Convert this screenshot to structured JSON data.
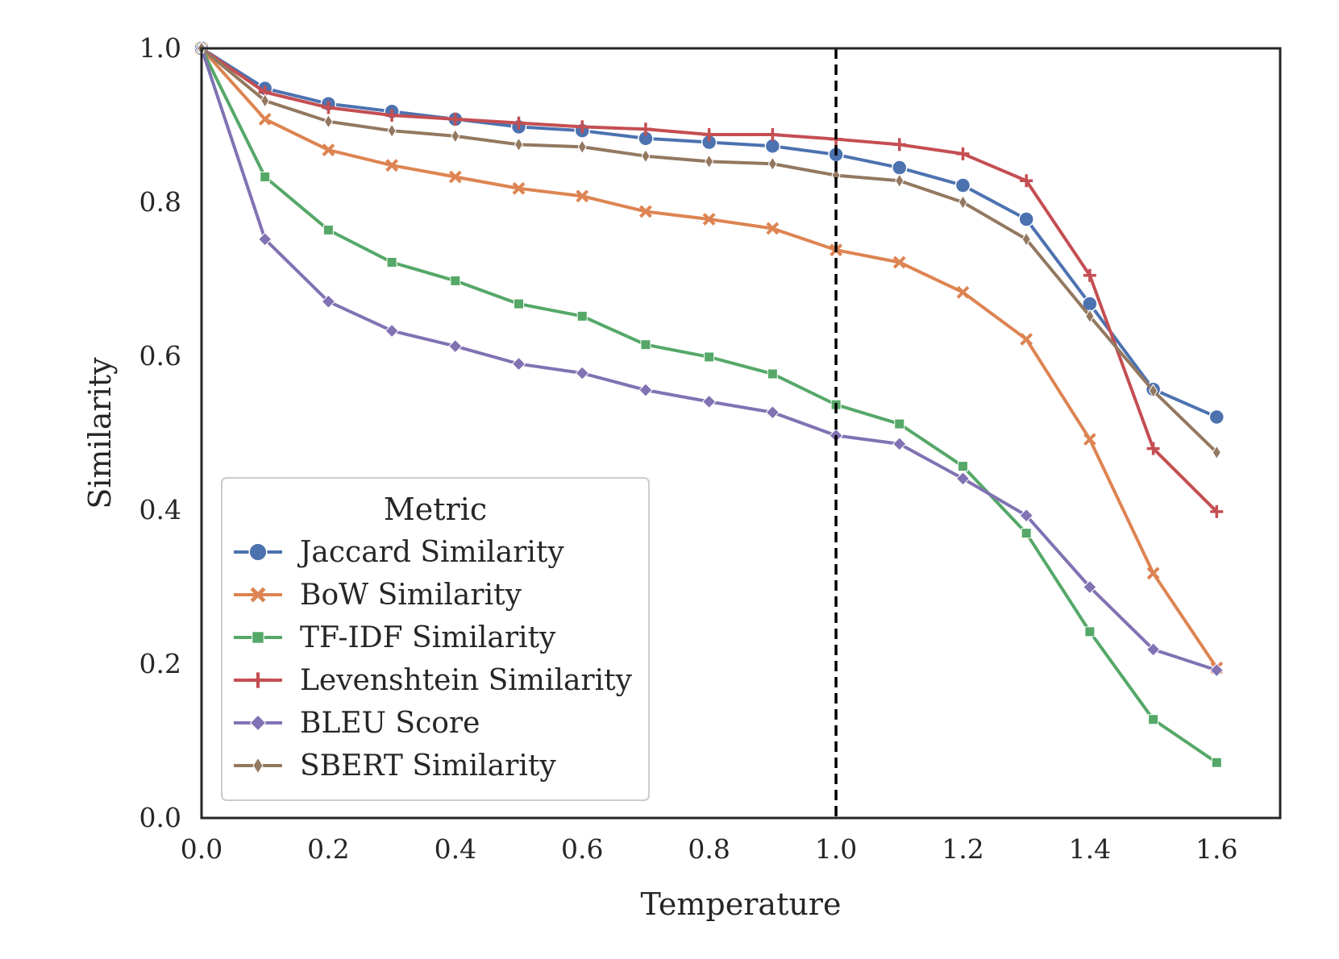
{
  "chart_data": {
    "type": "line",
    "title": "",
    "xlabel": "Temperature",
    "ylabel": "Similarity",
    "xlim": [
      0.0,
      1.7
    ],
    "ylim": [
      0.0,
      1.0
    ],
    "xticks": [
      "0.0",
      "0.2",
      "0.4",
      "0.6",
      "0.8",
      "1.0",
      "1.2",
      "1.4",
      "1.6"
    ],
    "yticks": [
      "0.0",
      "0.2",
      "0.4",
      "0.6",
      "0.8",
      "1.0"
    ],
    "grid": false,
    "reference_line": {
      "x": 1.0,
      "style": "dashed",
      "color": "#000000"
    },
    "x": [
      0.0,
      0.1,
      0.2,
      0.3,
      0.4,
      0.5,
      0.6,
      0.7,
      0.8,
      0.9,
      1.0,
      1.1,
      1.2,
      1.3,
      1.4,
      1.5,
      1.6
    ],
    "legend": {
      "title": "Metric",
      "position": "lower-left"
    },
    "series": [
      {
        "name": "Jaccard Similarity",
        "color": "#4C72B0",
        "marker": "circle",
        "values": [
          1.0,
          0.948,
          0.928,
          0.918,
          0.908,
          0.898,
          0.893,
          0.883,
          0.878,
          0.873,
          0.862,
          0.845,
          0.822,
          0.778,
          0.668,
          0.557,
          0.521
        ]
      },
      {
        "name": "BoW Similarity",
        "color": "#DD8452",
        "marker": "x",
        "values": [
          1.0,
          0.908,
          0.868,
          0.848,
          0.833,
          0.818,
          0.808,
          0.788,
          0.778,
          0.766,
          0.738,
          0.722,
          0.683,
          0.622,
          0.492,
          0.318,
          0.195
        ]
      },
      {
        "name": "TF-IDF Similarity",
        "color": "#55A868",
        "marker": "square",
        "values": [
          1.0,
          0.833,
          0.764,
          0.722,
          0.698,
          0.668,
          0.652,
          0.615,
          0.599,
          0.577,
          0.537,
          0.512,
          0.457,
          0.37,
          0.242,
          0.128,
          0.072
        ]
      },
      {
        "name": "Levenshtein Similarity",
        "color": "#C44E52",
        "marker": "plus",
        "values": [
          1.0,
          0.943,
          0.923,
          0.913,
          0.908,
          0.903,
          0.898,
          0.895,
          0.888,
          0.888,
          0.882,
          0.875,
          0.863,
          0.828,
          0.705,
          0.48,
          0.398
        ]
      },
      {
        "name": "BLEU Score",
        "color": "#8172B3",
        "marker": "diamond",
        "values": [
          1.0,
          0.752,
          0.671,
          0.633,
          0.613,
          0.59,
          0.578,
          0.556,
          0.541,
          0.527,
          0.497,
          0.486,
          0.441,
          0.393,
          0.3,
          0.219,
          0.192
        ]
      },
      {
        "name": "SBERT Similarity",
        "color": "#937860",
        "marker": "thin-diamond",
        "values": [
          1.0,
          0.932,
          0.905,
          0.893,
          0.886,
          0.875,
          0.872,
          0.86,
          0.853,
          0.85,
          0.835,
          0.828,
          0.8,
          0.752,
          0.652,
          0.555,
          0.475
        ]
      }
    ]
  }
}
